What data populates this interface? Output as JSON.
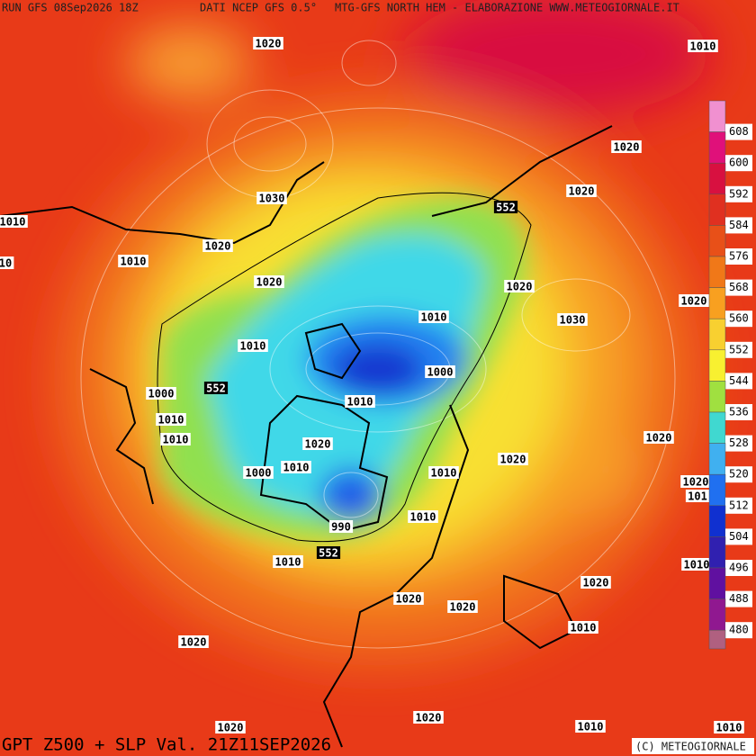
{
  "header": {
    "run": "RUN GFS 08Sep2026 18Z",
    "source": "DATI NCEP GFS 0.5°",
    "credit": "MTG-GFS NORTH HEM - ELABORAZIONE WWW.METEOGIORNALE.IT"
  },
  "footer": {
    "title": "GPT Z500 + SLP Val. 21Z11SEP2026",
    "copyright": "(C) METEOGIORNALE"
  },
  "colorbar": {
    "values": [
      608,
      600,
      592,
      584,
      576,
      568,
      560,
      552,
      544,
      536,
      528,
      520,
      512,
      504,
      496,
      488,
      480
    ],
    "colors": [
      "#f090d0",
      "#e0107a",
      "#d81040",
      "#e03020",
      "#e85018",
      "#f07818",
      "#f8a020",
      "#f8d030",
      "#f8f030",
      "#a0e040",
      "#40d8d0",
      "#40b0f0",
      "#2070f0",
      "#1030d0",
      "#3020b0",
      "#6010a0",
      "#901890"
    ]
  },
  "contour_labels": [
    "1020",
    "1010",
    "1020",
    "1020",
    "1030",
    "552",
    "1010",
    "1020",
    "1010",
    "10",
    "1020",
    "1020",
    "1010",
    "1030",
    "1020",
    "1010",
    "1000",
    "1000",
    "552",
    "1010",
    "1010",
    "1010",
    "1020",
    "1020",
    "1010",
    "1000",
    "1020",
    "1010",
    "1020",
    "101",
    "1010",
    "990",
    "552",
    "1010",
    "1010",
    "1020",
    "1020",
    "1020",
    "1010",
    "1020",
    "1010",
    "1020",
    "1020",
    "1010"
  ]
}
